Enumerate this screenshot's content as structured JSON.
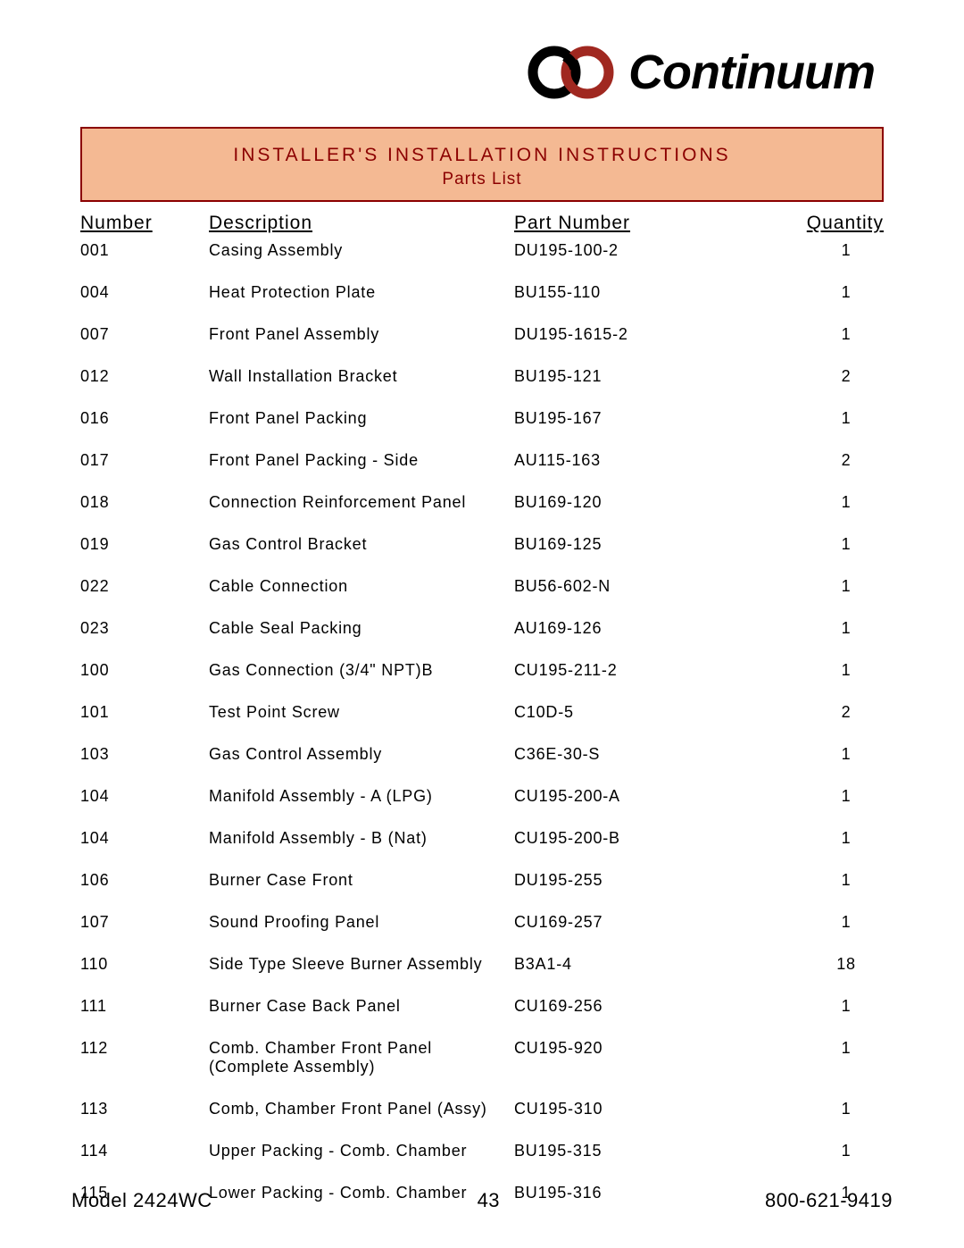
{
  "logo": {
    "text": "Continuum",
    "ring_color_1": "#000000",
    "ring_color_2": "#a02820"
  },
  "header": {
    "title": "INSTALLER'S   INSTALLATION   INSTRUCTIONS",
    "subtitle": "Parts List",
    "bg_color": "#f4b993",
    "text_color": "#8b0000",
    "border_color": "#8b0000"
  },
  "table": {
    "columns": [
      "Number",
      "Description",
      "Part Number",
      "Quantity"
    ],
    "rows": [
      {
        "number": "001",
        "description": "Casing Assembly",
        "partnumber": "DU195-100-2",
        "quantity": "1"
      },
      {
        "number": "004",
        "description": "Heat Protection Plate",
        "partnumber": "BU155-110",
        "quantity": "1"
      },
      {
        "number": "007",
        "description": "Front Panel Assembly",
        "partnumber": "DU195-1615-2",
        "quantity": "1"
      },
      {
        "number": "012",
        "description": "Wall Installation Bracket",
        "partnumber": "BU195-121",
        "quantity": "2"
      },
      {
        "number": "016",
        "description": "Front Panel Packing",
        "partnumber": "BU195-167",
        "quantity": "1"
      },
      {
        "number": "017",
        "description": "Front Panel Packing - Side",
        "partnumber": "AU115-163",
        "quantity": "2"
      },
      {
        "number": "018",
        "description": "Connection Reinforcement Panel",
        "partnumber": "BU169-120",
        "quantity": "1"
      },
      {
        "number": "019",
        "description": "Gas Control Bracket",
        "partnumber": "BU169-125",
        "quantity": "1"
      },
      {
        "number": "022",
        "description": "Cable Connection",
        "partnumber": "BU56-602-N",
        "quantity": "1"
      },
      {
        "number": "023",
        "description": "Cable Seal Packing",
        "partnumber": "AU169-126",
        "quantity": "1"
      },
      {
        "number": "100",
        "description": "Gas Connection (3/4\" NPT)B",
        "partnumber": "CU195-211-2",
        "quantity": "1"
      },
      {
        "number": "101",
        "description": "Test Point Screw",
        "partnumber": "C10D-5",
        "quantity": "2"
      },
      {
        "number": "103",
        "description": "Gas Control Assembly",
        "partnumber": "C36E-30-S",
        "quantity": "1"
      },
      {
        "number": "104",
        "description": "Manifold Assembly - A (LPG)",
        "partnumber": "CU195-200-A",
        "quantity": "1"
      },
      {
        "number": "104",
        "description": "Manifold Assembly - B (Nat)",
        "partnumber": "CU195-200-B",
        "quantity": "1"
      },
      {
        "number": "106",
        "description": "Burner Case Front",
        "partnumber": "DU195-255",
        "quantity": "1"
      },
      {
        "number": "107",
        "description": "Sound Proofing Panel",
        "partnumber": "CU169-257",
        "quantity": "1"
      },
      {
        "number": "110",
        "description": "Side Type Sleeve Burner Assembly",
        "partnumber": "B3A1-4",
        "quantity": "18"
      },
      {
        "number": "111",
        "description": "Burner Case Back Panel",
        "partnumber": "CU169-256",
        "quantity": "1"
      },
      {
        "number": "112",
        "description": "Comb. Chamber Front Panel (Complete Assembly)",
        "partnumber": "CU195-920",
        "quantity": "1"
      },
      {
        "number": "113",
        "description": "Comb, Chamber Front Panel (Assy)",
        "partnumber": "CU195-310",
        "quantity": "1"
      },
      {
        "number": "114",
        "description": "Upper Packing - Comb. Chamber",
        "partnumber": "BU195-315",
        "quantity": "1"
      },
      {
        "number": "115",
        "description": "Lower Packing - Comb. Chamber",
        "partnumber": "BU195-316",
        "quantity": "1"
      }
    ]
  },
  "footer": {
    "model": "Model 2424WC",
    "page": "43",
    "phone": "800-621-9419"
  }
}
